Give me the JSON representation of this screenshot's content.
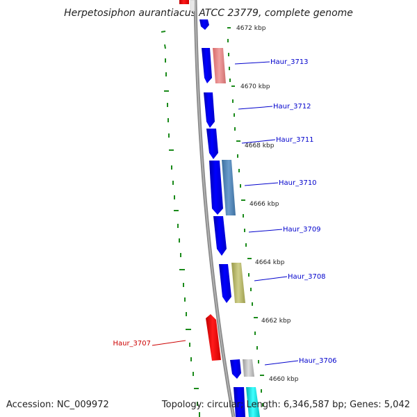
{
  "title": "Herpetosiphon aurantiacus ATCC 23779, complete genome",
  "accession": "Accession: NC_009972",
  "summary": "Topology: circular; Length: 6,346,587 bp; Genes: 5,042",
  "colors": {
    "backbone": "#8a8a8a",
    "forward_strand": "#0000ff",
    "reverse_strand": "#ff0000",
    "tick_green": "#1a8a1a",
    "label_blue": "#0000cc",
    "label_red": "#cc0000"
  },
  "position_ticks": [
    {
      "label": "4672 kbp"
    },
    {
      "label": "4670 kbp"
    },
    {
      "label": "4668 kbp"
    },
    {
      "label": "4666 kbp"
    },
    {
      "label": "4664 kbp"
    },
    {
      "label": "4662 kbp"
    },
    {
      "label": "4660 kbp"
    }
  ],
  "gene_labels": [
    {
      "id": "Haur_3713",
      "strand": "forward"
    },
    {
      "id": "Haur_3712",
      "strand": "forward"
    },
    {
      "id": "Haur_3711",
      "strand": "forward"
    },
    {
      "id": "Haur_3710",
      "strand": "forward"
    },
    {
      "id": "Haur_3709",
      "strand": "forward"
    },
    {
      "id": "Haur_3708",
      "strand": "forward"
    },
    {
      "id": "Haur_3707",
      "strand": "reverse"
    },
    {
      "id": "Haur_3706",
      "strand": "forward"
    }
  ]
}
